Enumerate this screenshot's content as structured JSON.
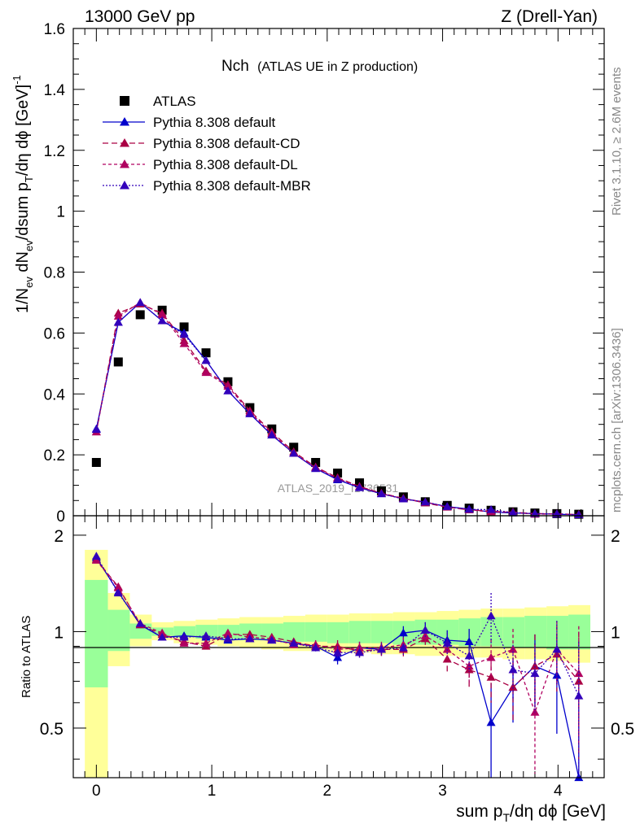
{
  "header": {
    "left": "13000 GeV pp",
    "right": "Z (Drell-Yan)"
  },
  "side": {
    "rivet": "Rivet 3.1.10, ≥ 2.6M events",
    "mcplots": "mcplots.cern.ch [arXiv:1306.3436]"
  },
  "watermark": "ATLAS_2019_I1736531",
  "colors": {
    "data": "#000000",
    "default": "#0000cc",
    "cd": "#aa0044",
    "dl": "#b00060",
    "mbr": "#3300bb",
    "band_inner": "#99ff99",
    "band_outer": "#ffff99"
  },
  "chart_data": [
    {
      "type": "scatter",
      "title": "Nch",
      "subtitle": "(ATLAS UE in Z production)",
      "xlabel": "sum p_T/dη dφ [GeV]",
      "ylabel": "1/N_ev dN_ev/dsum p_T/dη dφ [GeV]^-1",
      "xlim": [
        -0.2,
        4.4
      ],
      "ylim": [
        0,
        1.6
      ],
      "yticks": [
        0,
        0.2,
        0.4,
        0.6,
        0.8,
        1,
        1.2,
        1.4,
        1.6
      ],
      "ytick_labels": [
        "0",
        "0.2",
        "0.4",
        "0.6",
        "0.8",
        "1",
        "1.2",
        "1.4",
        "1.6"
      ],
      "legend_position": "top-left",
      "x": [
        0.0,
        0.19,
        0.38,
        0.57,
        0.76,
        0.95,
        1.14,
        1.33,
        1.52,
        1.71,
        1.9,
        2.09,
        2.28,
        2.47,
        2.66,
        2.85,
        3.04,
        3.23,
        3.42,
        3.61,
        3.8,
        3.99,
        4.18
      ],
      "series": [
        {
          "name": "ATLAS",
          "key": "data",
          "marker": "square",
          "values": [
            0.175,
            0.505,
            0.66,
            0.675,
            0.62,
            0.535,
            0.44,
            0.355,
            0.285,
            0.225,
            0.175,
            0.14,
            0.108,
            0.082,
            0.062,
            0.046,
            0.034,
            0.025,
            0.018,
            0.013,
            0.009,
            0.007,
            0.005
          ]
        },
        {
          "name": "Pythia 8.308 default",
          "key": "default",
          "marker": "triangle",
          "dash": "",
          "values": [
            0.285,
            0.635,
            0.7,
            0.64,
            0.6,
            0.51,
            0.41,
            0.335,
            0.265,
            0.205,
            0.155,
            0.118,
            0.092,
            0.072,
            0.056,
            0.044,
            0.03,
            0.022,
            0.012,
            0.009,
            0.007,
            0.005,
            0.003
          ]
        },
        {
          "name": "Pythia 8.308 default-CD",
          "key": "cd",
          "marker": "triangle",
          "dash": "7,4",
          "values": [
            0.275,
            0.665,
            0.695,
            0.665,
            0.575,
            0.475,
            0.43,
            0.345,
            0.275,
            0.21,
            0.16,
            0.125,
            0.096,
            0.074,
            0.057,
            0.042,
            0.028,
            0.019,
            0.015,
            0.011,
            0.007,
            0.006,
            0.004
          ]
        },
        {
          "name": "Pythia 8.308 default-DL",
          "key": "dl",
          "marker": "triangle",
          "dash": "4,3",
          "values": [
            0.275,
            0.655,
            0.7,
            0.66,
            0.565,
            0.47,
            0.425,
            0.34,
            0.27,
            0.205,
            0.158,
            0.122,
            0.095,
            0.073,
            0.056,
            0.045,
            0.029,
            0.02,
            0.012,
            0.012,
            0.005,
            0.006,
            0.004
          ]
        },
        {
          "name": "Pythia 8.308 default-MBR",
          "key": "mbr",
          "marker": "triangle",
          "dash": "2,2",
          "values": [
            0.283,
            0.635,
            0.7,
            0.64,
            0.595,
            0.51,
            0.41,
            0.335,
            0.265,
            0.205,
            0.155,
            0.12,
            0.092,
            0.072,
            0.055,
            0.045,
            0.03,
            0.021,
            0.02,
            0.01,
            0.007,
            0.006,
            0.003
          ]
        }
      ]
    },
    {
      "type": "scatter",
      "ylabel": "Ratio to ATLAS",
      "xlabel": "sum p_T/dη dφ [GeV]",
      "xlim": [
        -0.2,
        4.4
      ],
      "ylim": [
        0.35,
        2.3
      ],
      "yticks": [
        0.5,
        1,
        2
      ],
      "ytick_labels": [
        "0.5",
        "1",
        "2"
      ],
      "xticks": [
        0,
        1,
        2,
        3,
        4
      ],
      "xtick_labels": [
        "0",
        "1",
        "2",
        "3",
        "4"
      ],
      "band_edges": [
        -0.1,
        0.1,
        0.29,
        0.48,
        0.67,
        0.86,
        1.05,
        1.24,
        1.43,
        1.62,
        1.81,
        2.0,
        2.19,
        2.38,
        2.57,
        2.76,
        2.95,
        3.14,
        3.33,
        3.52,
        3.71,
        3.9,
        4.09,
        4.28
      ],
      "band_inner_lo": [
        0.67,
        0.87,
        0.95,
        0.97,
        0.96,
        0.95,
        0.95,
        0.94,
        0.94,
        0.93,
        0.93,
        0.92,
        0.92,
        0.92,
        0.91,
        0.91,
        0.91,
        0.9,
        0.9,
        0.89,
        0.89,
        0.88,
        0.88
      ],
      "band_inner_hi": [
        1.45,
        1.17,
        1.06,
        1.03,
        1.04,
        1.05,
        1.05,
        1.06,
        1.06,
        1.07,
        1.07,
        1.07,
        1.08,
        1.08,
        1.08,
        1.09,
        1.09,
        1.1,
        1.11,
        1.11,
        1.12,
        1.12,
        1.13
      ],
      "band_outer_lo": [
        0.3,
        0.78,
        0.9,
        0.94,
        0.92,
        0.91,
        0.9,
        0.89,
        0.88,
        0.87,
        0.87,
        0.86,
        0.86,
        0.85,
        0.85,
        0.84,
        0.84,
        0.83,
        0.83,
        0.82,
        0.82,
        0.81,
        0.8
      ],
      "band_outer_hi": [
        1.8,
        1.32,
        1.13,
        1.07,
        1.08,
        1.09,
        1.1,
        1.11,
        1.11,
        1.12,
        1.13,
        1.13,
        1.14,
        1.14,
        1.15,
        1.15,
        1.16,
        1.17,
        1.18,
        1.18,
        1.19,
        1.2,
        1.21
      ],
      "x": [
        0.0,
        0.19,
        0.38,
        0.57,
        0.76,
        0.95,
        1.14,
        1.33,
        1.52,
        1.71,
        1.9,
        2.09,
        2.28,
        2.47,
        2.66,
        2.85,
        3.04,
        3.23,
        3.42,
        3.61,
        3.8,
        3.99,
        4.18
      ],
      "series": [
        {
          "name": "Pythia 8.308 default",
          "key": "default",
          "dash": "",
          "values": [
            1.7,
            1.33,
            1.05,
            0.96,
            0.97,
            0.96,
            0.94,
            0.95,
            0.94,
            0.92,
            0.9,
            0.83,
            0.89,
            0.88,
            0.99,
            1.01,
            0.94,
            0.93,
            0.52,
            0.67,
            0.78,
            0.73,
            0.35
          ],
          "errors": [
            0.03,
            0.02,
            0.02,
            0.02,
            0.02,
            0.02,
            0.02,
            0.02,
            0.02,
            0.02,
            0.03,
            0.04,
            0.04,
            0.04,
            0.05,
            0.06,
            0.07,
            0.09,
            0.17,
            0.15,
            0.2,
            0.25,
            0.4
          ]
        },
        {
          "name": "Pythia 8.308 default-CD",
          "key": "cd",
          "dash": "7,4",
          "values": [
            1.68,
            1.38,
            1.05,
            0.98,
            0.93,
            0.9,
            0.98,
            0.98,
            0.96,
            0.93,
            0.9,
            0.9,
            0.87,
            0.88,
            0.88,
            0.95,
            0.82,
            0.76,
            0.72,
            0.67,
            0.78,
            0.85,
            0.7
          ],
          "errors": [
            0.03,
            0.02,
            0.02,
            0.02,
            0.02,
            0.02,
            0.02,
            0.02,
            0.02,
            0.02,
            0.03,
            0.04,
            0.04,
            0.04,
            0.05,
            0.06,
            0.07,
            0.09,
            0.12,
            0.14,
            0.2,
            0.2,
            0.3
          ]
        },
        {
          "name": "Pythia 8.308 default-DL",
          "key": "dl",
          "dash": "4,3",
          "values": [
            1.67,
            1.37,
            1.06,
            0.99,
            0.92,
            0.92,
            0.99,
            0.96,
            0.95,
            0.91,
            0.91,
            0.88,
            0.89,
            0.89,
            0.91,
            0.97,
            0.88,
            0.78,
            0.83,
            0.88,
            0.56,
            0.88,
            0.74
          ],
          "errors": [
            0.03,
            0.02,
            0.02,
            0.02,
            0.02,
            0.02,
            0.02,
            0.02,
            0.02,
            0.02,
            0.03,
            0.04,
            0.04,
            0.04,
            0.05,
            0.06,
            0.07,
            0.09,
            0.12,
            0.14,
            0.2,
            0.2,
            0.3
          ]
        },
        {
          "name": "Pythia 8.308 default-MBR",
          "key": "mbr",
          "dash": "2,2",
          "values": [
            1.72,
            1.32,
            1.06,
            0.96,
            0.96,
            0.97,
            0.95,
            0.95,
            0.94,
            0.92,
            0.89,
            0.86,
            0.86,
            0.88,
            0.89,
            1.01,
            0.92,
            0.84,
            1.12,
            0.76,
            0.74,
            0.88,
            0.63
          ],
          "errors": [
            0.03,
            0.02,
            0.02,
            0.02,
            0.02,
            0.02,
            0.02,
            0.02,
            0.02,
            0.02,
            0.03,
            0.04,
            0.04,
            0.04,
            0.05,
            0.06,
            0.07,
            0.09,
            0.2,
            0.15,
            0.18,
            0.2,
            0.3
          ]
        }
      ]
    }
  ]
}
